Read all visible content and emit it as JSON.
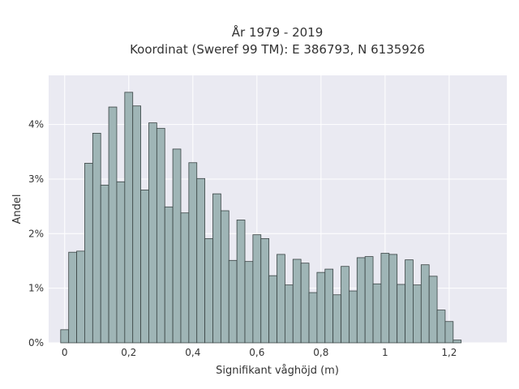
{
  "chart_data": {
    "type": "bar",
    "title": "År 1979 - 2019",
    "subtitle": "Koordinat (Sweref 99 TM): E 386793, N 6135926",
    "xlabel": "Signifikant våghöjd (m)",
    "ylabel": "Andel",
    "xlim": [
      -0.05,
      1.38
    ],
    "ylim": [
      0,
      4.9
    ],
    "grid": true,
    "bin_width": 0.025,
    "x_ticks": [
      0,
      0.2,
      0.4,
      0.6,
      0.8,
      1,
      1.2
    ],
    "x_tick_labels": [
      "0",
      "0,2",
      "0,4",
      "0,6",
      "0,8",
      "1",
      "1,2"
    ],
    "y_ticks": [
      0,
      1,
      2,
      3,
      4
    ],
    "y_tick_labels": [
      "0%",
      "1%",
      "2%",
      "3%",
      "4%"
    ],
    "x": [
      0,
      0.025,
      0.05,
      0.075,
      0.1,
      0.125,
      0.15,
      0.175,
      0.2,
      0.225,
      0.25,
      0.275,
      0.3,
      0.325,
      0.35,
      0.375,
      0.4,
      0.425,
      0.45,
      0.475,
      0.5,
      0.525,
      0.55,
      0.575,
      0.6,
      0.625,
      0.65,
      0.675,
      0.7,
      0.725,
      0.75,
      0.775,
      0.8,
      0.825,
      0.85,
      0.875,
      0.9,
      0.925,
      0.95,
      0.975,
      1.0,
      1.025,
      1.05,
      1.075,
      1.1,
      1.125,
      1.15,
      1.175,
      1.2,
      1.225,
      1.25,
      1.275,
      1.3
    ],
    "values": [
      0.24,
      1.66,
      1.68,
      3.29,
      3.84,
      2.89,
      4.32,
      2.95,
      4.59,
      4.34,
      2.8,
      4.03,
      3.93,
      2.49,
      3.55,
      2.38,
      3.3,
      3.01,
      1.91,
      2.73,
      2.42,
      1.51,
      2.25,
      1.49,
      1.98,
      1.91,
      1.23,
      1.62,
      1.06,
      1.53,
      1.46,
      0.92,
      1.29,
      1.35,
      0.88,
      1.4,
      0.95,
      1.56,
      1.58,
      1.08,
      1.64,
      1.62,
      1.07,
      1.52,
      1.06,
      1.43,
      1.22,
      0.6,
      0.39,
      0.05,
      0,
      0,
      0
    ],
    "bar_color": "#9fb5b6",
    "bar_edge_color": "#3a4444",
    "plot_background": "#eaeaf2",
    "grid_color": "#ffffff"
  }
}
